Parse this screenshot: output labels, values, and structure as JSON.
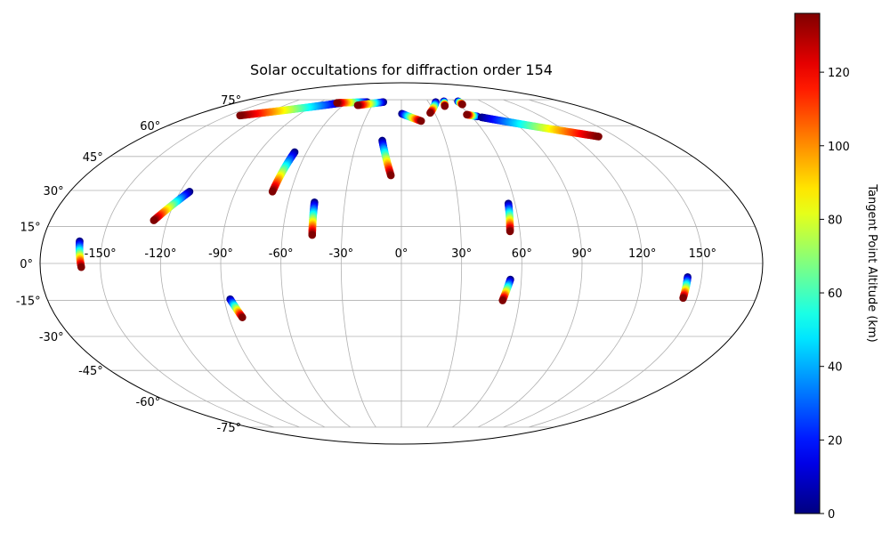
{
  "chart_data": {
    "type": "scatter",
    "projection": "mollweide",
    "title": "Solar occultations for diffraction order 154",
    "grid": true,
    "x_ticks": [
      "-150°",
      "-120°",
      "-90°",
      "-60°",
      "-30°",
      "0°",
      "30°",
      "60°",
      "90°",
      "120°",
      "150°"
    ],
    "x_tick_values": [
      -150,
      -120,
      -90,
      -60,
      -30,
      0,
      30,
      60,
      90,
      120,
      150
    ],
    "y_ticks": [
      "-75°",
      "-60°",
      "-45°",
      "-30°",
      "-15°",
      "0°",
      "15°",
      "30°",
      "45°",
      "60°",
      "75°"
    ],
    "y_tick_values": [
      -75,
      -60,
      -45,
      -30,
      -15,
      0,
      15,
      30,
      45,
      60,
      75
    ],
    "colorbar": {
      "label": "Tangent Point Altitude (km)",
      "range": [
        0,
        136
      ],
      "ticks": [
        "0",
        "20",
        "40",
        "60",
        "80",
        "100",
        "120"
      ],
      "tick_values": [
        0,
        20,
        40,
        60,
        80,
        100,
        120
      ],
      "colormap": "jet"
    },
    "tracks": [
      {
        "from": [
          -161.5,
          9.0
        ],
        "to": [
          -159.5,
          -1.5
        ]
      },
      {
        "from": [
          -115.0,
          29.5
        ],
        "to": [
          -127.0,
          17.5
        ]
      },
      {
        "from": [
          -87.0,
          -14.5
        ],
        "to": [
          -83.0,
          -22.0
        ]
      },
      {
        "from": [
          -67.5,
          47.0
        ],
        "to": [
          -70.0,
          29.5
        ]
      },
      {
        "from": [
          -46.0,
          25.0
        ],
        "to": [
          -45.0,
          11.5
        ]
      },
      {
        "from": [
          -13.0,
          52.5
        ],
        "to": [
          -6.0,
          36.5
        ]
      },
      {
        "from": [
          56.5,
          24.5
        ],
        "to": [
          55.0,
          13.0
        ]
      },
      {
        "from": [
          54.5,
          -6.5
        ],
        "to": [
          51.5,
          -15.0
        ]
      },
      {
        "from": [
          143.0,
          -5.5
        ],
        "to": [
          143.0,
          -14.0
        ]
      },
      {
        "from": [
          0.5,
          66.5
        ],
        "to": [
          16.0,
          62.5
        ]
      },
      {
        "from": [
          65.0,
          65.0
        ],
        "to": [
          57.5,
          66.0
        ]
      },
      {
        "from": [
          68.0,
          64.5
        ],
        "to": [
          138.0,
          54.5
        ]
      },
      {
        "from": [
          -65.0,
          73.0
        ],
        "to": [
          -140.0,
          65.5
        ]
      },
      {
        "from": [
          -38.0,
          73.5
        ],
        "to": [
          -70.0,
          73.0
        ]
      },
      {
        "from": [
          -20.0,
          73.5
        ],
        "to": [
          -45.0,
          71.5
        ]
      },
      {
        "from": [
          38.0,
          73.5
        ],
        "to": [
          26.0,
          67.0
        ]
      },
      {
        "from": [
          48.0,
          74.0
        ],
        "to": [
          44.0,
          71.0
        ]
      },
      {
        "from": [
          64.0,
          74.0
        ],
        "to": [
          64.0,
          72.0
        ]
      }
    ]
  }
}
